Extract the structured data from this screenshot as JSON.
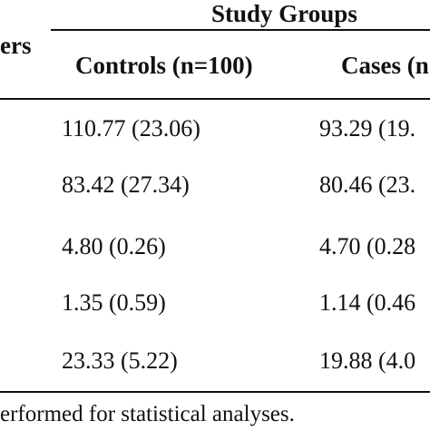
{
  "table": {
    "header": {
      "group_label": "Study Groups",
      "param_fragment": "ers",
      "columns": [
        "Controls (n=100)",
        "Cases (n"
      ]
    },
    "rows": [
      {
        "controls": "110.77 (23.06)",
        "cases": "93.29 (19."
      },
      {
        "controls": "83.42 (27.34)",
        "cases": "80.46 (23."
      },
      {
        "controls": "4.80 (0.26)",
        "cases": "4.70 (0.28"
      },
      {
        "controls": "1.35 (0.59)",
        "cases": "1.14 (0.46"
      },
      {
        "controls": "23.33 (5.22)",
        "cases": "19.88 (4.0"
      }
    ]
  },
  "footnote": "erformed for statistical analyses."
}
